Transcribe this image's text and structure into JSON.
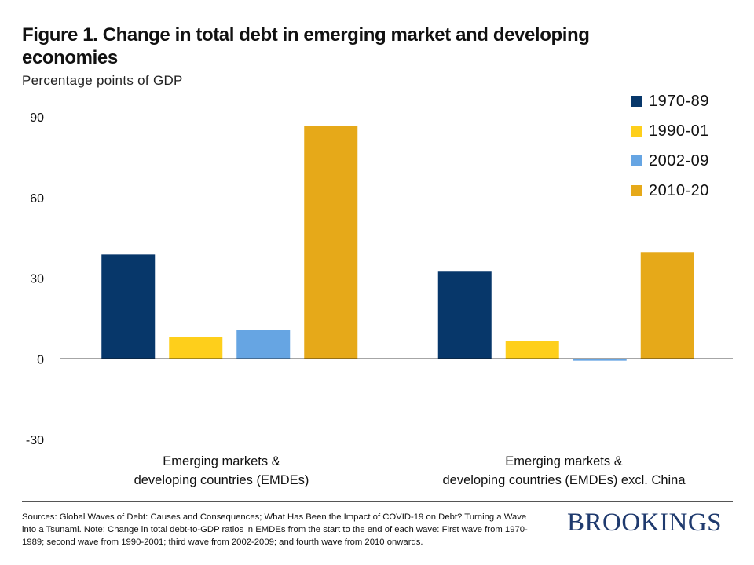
{
  "header": {
    "title": "Figure 1. Change in total debt in emerging market and developing economies",
    "subtitle": "Percentage points of GDP"
  },
  "chart_data": {
    "type": "bar",
    "title": "Figure 1. Change in total debt in emerging market and developing economies",
    "ylabel": "Percentage points of GDP",
    "xlabel": "",
    "categories": [
      "Emerging markets & developing countries (EMDEs)",
      "Emerging markets & developing countries (EMDEs) excl. China"
    ],
    "category_lines": [
      [
        "Emerging markets &",
        "developing countries (EMDEs)"
      ],
      [
        "Emerging markets &",
        "developing countries (EMDEs) excl. China"
      ]
    ],
    "series": [
      {
        "name": "1970-89",
        "color": "#07376a",
        "values": [
          38.8,
          32.7
        ]
      },
      {
        "name": "1990-01",
        "color": "#fecf1b",
        "values": [
          8.2,
          6.7
        ]
      },
      {
        "name": "2002-09",
        "color": "#66a5e3",
        "values": [
          10.8,
          -0.7
        ]
      },
      {
        "name": "2010-20",
        "color": "#e6a919",
        "values": [
          86.6,
          39.7
        ]
      }
    ],
    "ylim": [
      -30,
      90
    ],
    "yticks": [
      -30,
      0,
      30,
      60,
      90
    ],
    "ytick_labels": [
      "-30",
      "0",
      "30",
      "60",
      "90"
    ],
    "grid": false,
    "legend": "top-right"
  },
  "footer": {
    "source": "Sources: Global Waves of Debt: Causes and Consequences; What Has Been the Impact of COVID-19 on Debt? Turning a Wave into a Tsunami. Note: Change in total debt-to-GDP ratios in EMDEs from the start to the end of each wave: First wave from 1970-1989; second wave from 1990-2001; third wave from 2002-2009; and fourth wave from 2010 onwards.",
    "logo": "BROOKINGS"
  }
}
